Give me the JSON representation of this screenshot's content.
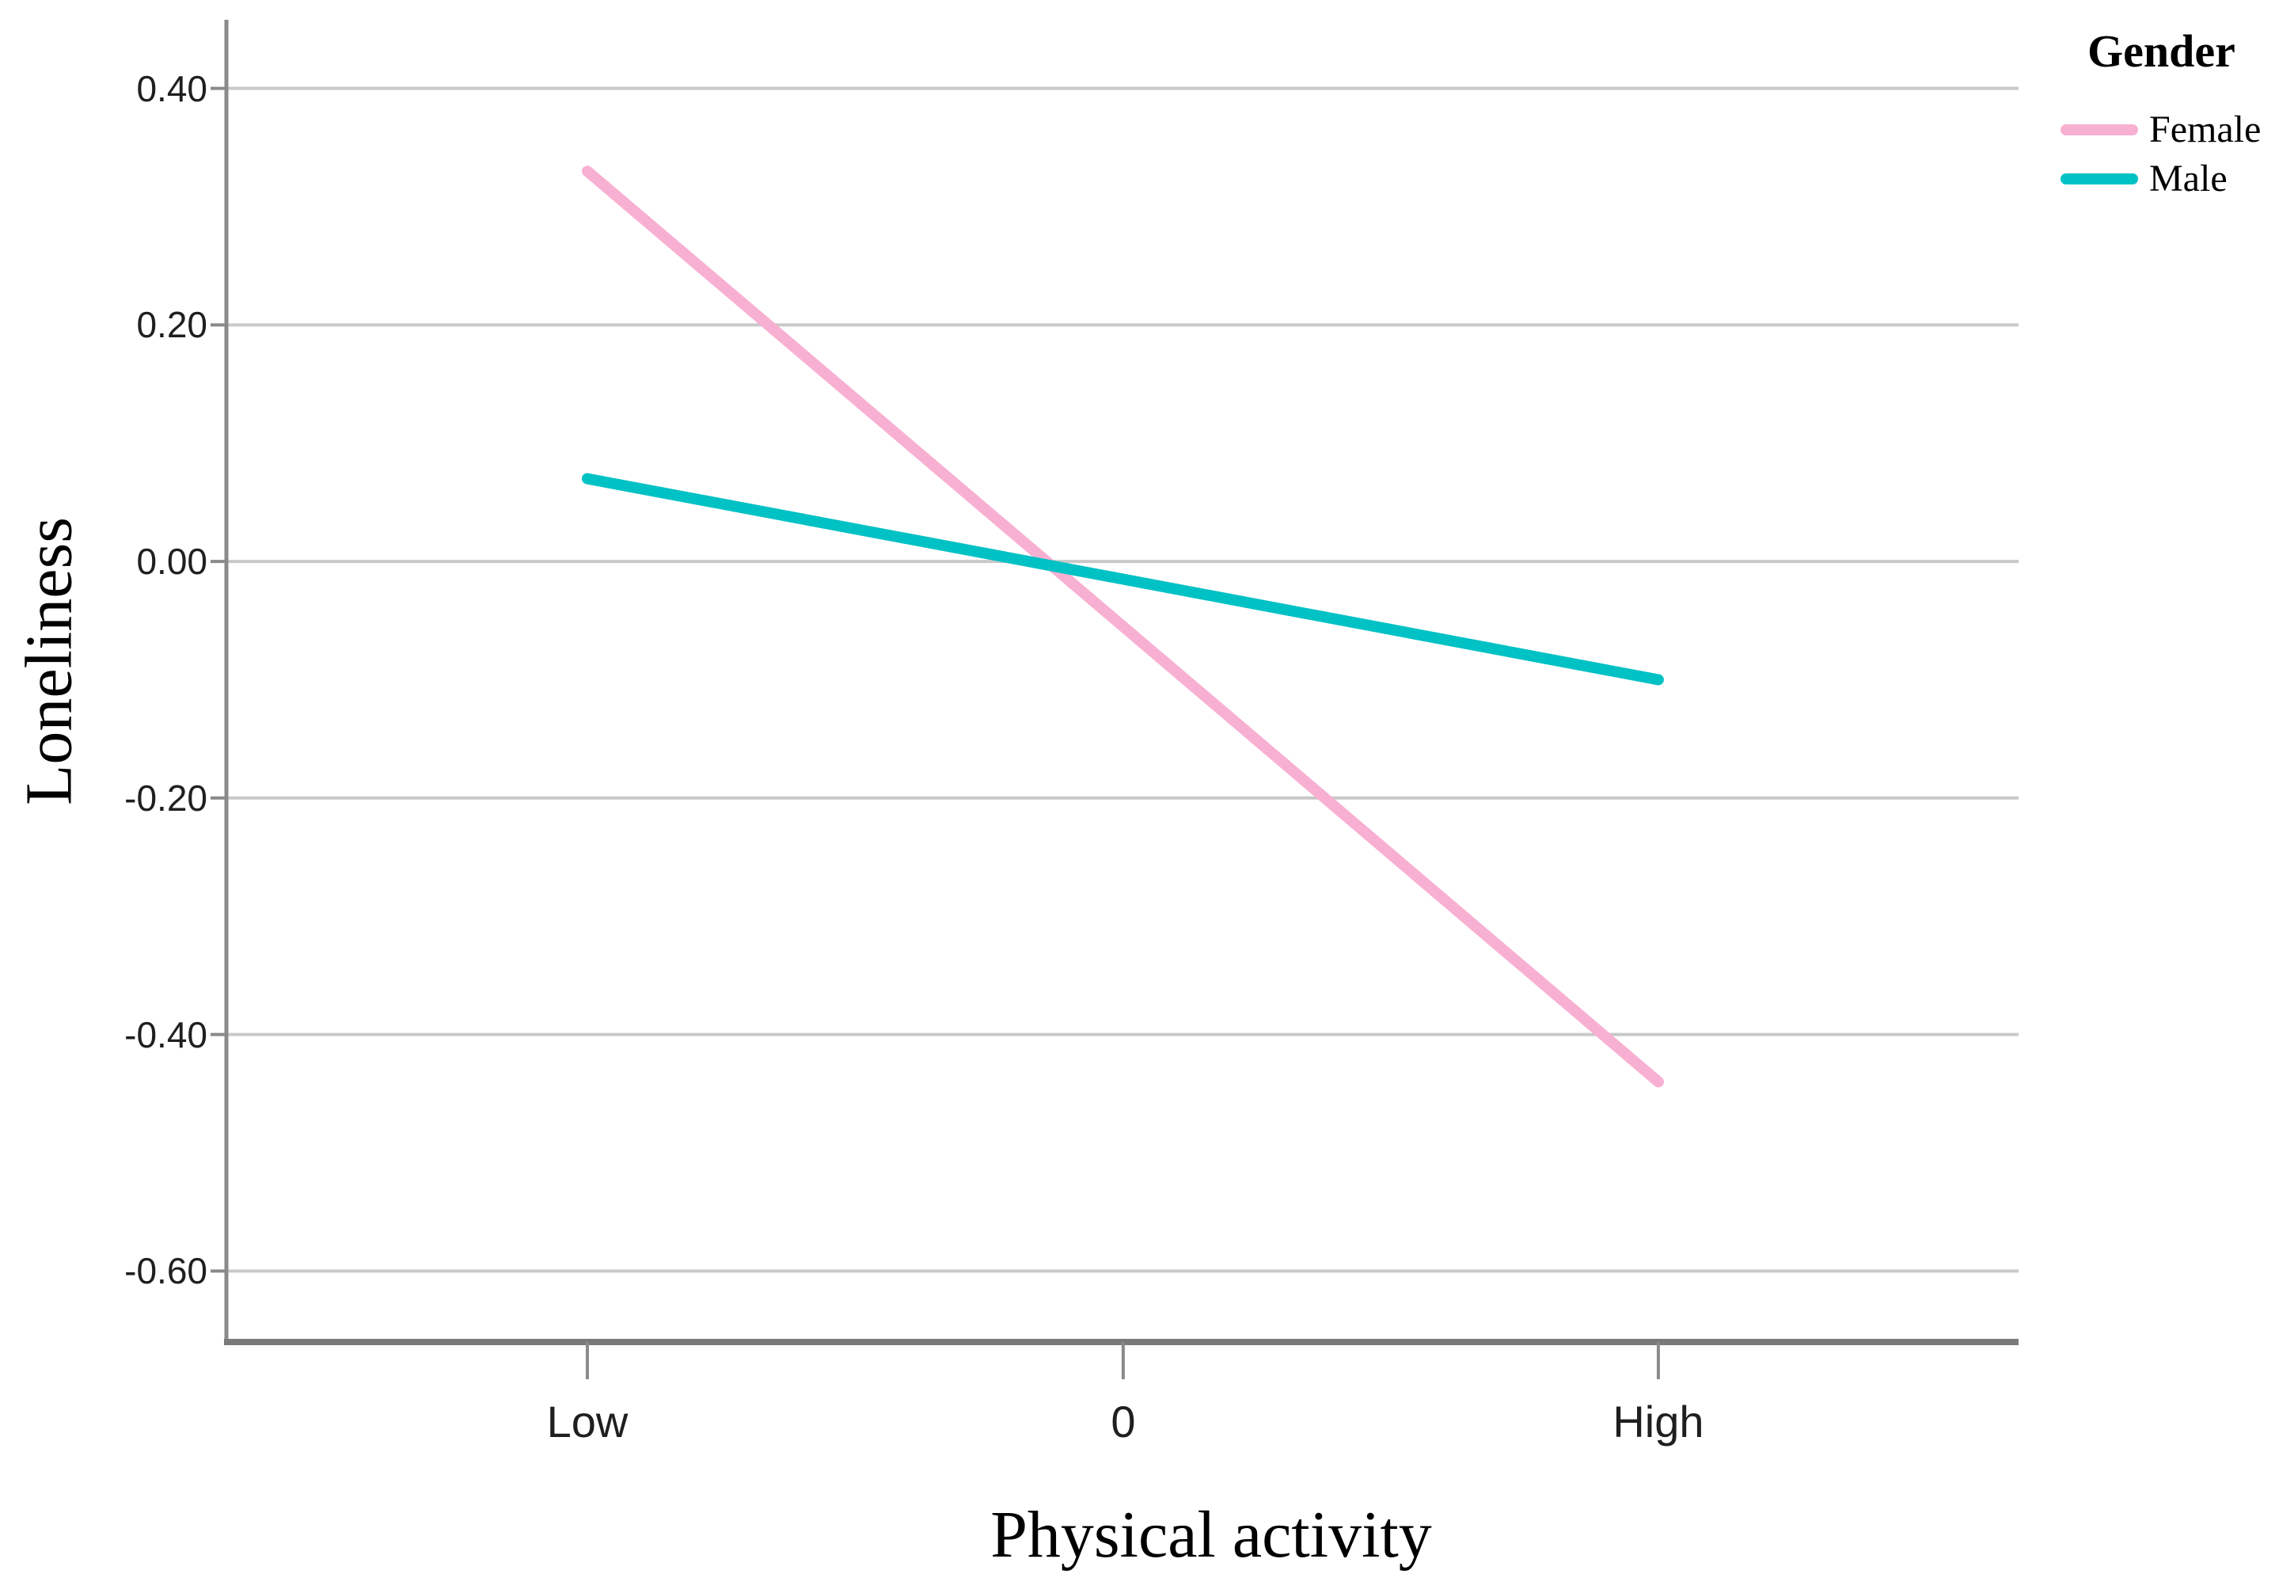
{
  "chart_data": {
    "type": "line",
    "title": "",
    "xlabel": "Physical activity",
    "ylabel": "Loneliness",
    "categories": [
      "Low",
      "0",
      "High"
    ],
    "series": [
      {
        "name": "Female",
        "color": "#F8B0D2",
        "values": [
          0.33,
          -0.055,
          -0.44
        ]
      },
      {
        "name": "Male",
        "color": "#00C1C4",
        "values": [
          0.07,
          -0.015,
          -0.1
        ]
      }
    ],
    "y_ticks": [
      {
        "value": 0.4,
        "label": "0.40"
      },
      {
        "value": 0.2,
        "label": "0.20"
      },
      {
        "value": 0.0,
        "label": "0.00"
      },
      {
        "value": -0.2,
        "label": "-0.20"
      },
      {
        "value": -0.4,
        "label": "-0.40"
      },
      {
        "value": -0.6,
        "label": "-0.60"
      }
    ],
    "ylim": [
      -0.66,
      0.458
    ],
    "grid": "horizontal",
    "legend_title": "Gender",
    "legend_position": "top-right",
    "colors": {
      "gridline": "#C9C9C9",
      "axis": "#8A8A8A",
      "axis_bottom": "#7A7A7A",
      "tick_text": "#1f1f1f"
    }
  }
}
